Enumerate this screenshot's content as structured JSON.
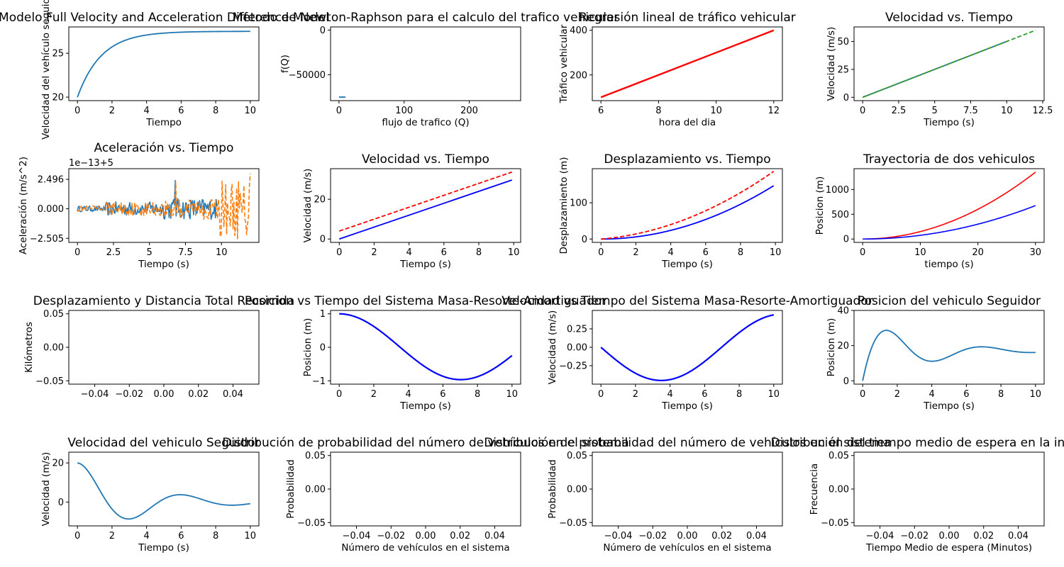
{
  "colors": {
    "c0": "#1f77b4",
    "c1": "#ff7f0e",
    "c2": "#2ca02c",
    "red": "#ff0000",
    "blue": "#0000ff"
  },
  "chart_data": [
    {
      "id": "p1",
      "type": "line",
      "title": "Modelo Full Velocity and Acceleration Difference Model",
      "xlabel": "Tiempo",
      "ylabel": "Velocidad del vehículo seguidor",
      "xlim": [
        -0.5,
        10.5
      ],
      "ylim": [
        19.6,
        28.0
      ],
      "xticks": [
        0,
        2,
        4,
        6,
        8,
        10
      ],
      "yticks": [
        20,
        25
      ],
      "series": [
        {
          "kind": "expr",
          "fn": "fvadm",
          "x": [
            0,
            10
          ],
          "color": "#1f77b4",
          "style": "solid",
          "width": 1.8
        }
      ]
    },
    {
      "id": "p2",
      "type": "line",
      "title": "Metodo de Newton-Raphson para el calculo del trafico vehicular",
      "xlabel": "flujo de trafico (Q)",
      "ylabel": "f(Q)",
      "xlim": [
        -13,
        279
      ],
      "ylim": [
        -79000,
        3500
      ],
      "xticks": [
        0,
        100,
        200
      ],
      "yticks": [
        0,
        -50000
      ],
      "series": [
        {
          "kind": "points",
          "x": [
            0,
            2,
            4,
            6,
            8,
            10
          ],
          "y": [
            -75000,
            -75000,
            -75000,
            -75000,
            -75000,
            -75000
          ],
          "color": "#1f77b4",
          "style": "solid",
          "width": 1.8
        }
      ]
    },
    {
      "id": "p3",
      "type": "line",
      "title": "Regresión lineal de tráfico vehicular",
      "xlabel": "hora del dia",
      "ylabel": "Tráfico vehicular",
      "xlim": [
        5.7,
        12.3
      ],
      "ylim": [
        85,
        415
      ],
      "xticks": [
        6,
        8,
        10,
        12
      ],
      "yticks": [
        200,
        400
      ],
      "series": [
        {
          "kind": "points",
          "x": [
            6,
            12
          ],
          "y": [
            100,
            400
          ],
          "color": "#ff0000",
          "style": "solid",
          "width": 2.4
        }
      ]
    },
    {
      "id": "p4",
      "type": "line",
      "title": "Velocidad vs. Tiempo",
      "xlabel": "Tiempo (s)",
      "ylabel": "Velocidad (m/s)",
      "xlim": [
        -0.6,
        12.6
      ],
      "ylim": [
        -3,
        63
      ],
      "xticks": [
        0,
        2.5,
        5,
        7.5,
        10,
        12.5
      ],
      "yticks": [
        0,
        25,
        50
      ],
      "series": [
        {
          "kind": "points",
          "x": [
            0,
            10
          ],
          "y": [
            0,
            50
          ],
          "color": "#1f77b4",
          "style": "solid",
          "width": 1.8
        },
        {
          "kind": "points",
          "x": [
            0,
            10
          ],
          "y": [
            0,
            50
          ],
          "color": "#ff7f0e",
          "style": "dashed",
          "width": 1.8
        },
        {
          "kind": "points",
          "x": [
            0,
            12
          ],
          "y": [
            0,
            60
          ],
          "color": "#2ca02c",
          "style": "dashed",
          "width": 1.8
        }
      ]
    },
    {
      "id": "p5",
      "type": "line",
      "title": "Aceleración vs. Tiempo",
      "xlabel": "Tiempo (s)",
      "ylabel": "Aceleración (m/s^2)",
      "offset_label": "1e−13+5",
      "xlim": [
        -0.6,
        12.6
      ],
      "ylim": [
        -2.85,
        3.4
      ],
      "xticks": [
        0,
        2.5,
        5,
        7.5,
        10
      ],
      "yticks": [
        2.496,
        0,
        -2.505
      ],
      "ytick_labels": [
        "2.496",
        "0.000",
        "−2.505"
      ],
      "series": [
        {
          "kind": "expr",
          "fn": "noise_a",
          "x": [
            0,
            9.7
          ],
          "color": "#1f77b4",
          "style": "solid",
          "width": 1.5
        },
        {
          "kind": "expr",
          "fn": "noise_b",
          "x": [
            0,
            12
          ],
          "color": "#ff7f0e",
          "style": "dashed",
          "width": 1.6
        }
      ]
    },
    {
      "id": "p6",
      "type": "line",
      "title": "Velocidad vs. Tiempo",
      "xlabel": "Tiempo (s)",
      "ylabel": "Velocidad (m/s)",
      "xlim": [
        -0.5,
        10.4
      ],
      "ylim": [
        -1.7,
        35.4
      ],
      "xticks": [
        0,
        2,
        4,
        6,
        8,
        10
      ],
      "yticks": [
        0,
        20
      ],
      "series": [
        {
          "kind": "points",
          "x": [
            0,
            9.9
          ],
          "y": [
            0,
            29.7
          ],
          "color": "#0000ff",
          "style": "solid",
          "width": 1.8
        },
        {
          "kind": "points",
          "x": [
            0,
            9.9
          ],
          "y": [
            4,
            33.7
          ],
          "color": "#ff0000",
          "style": "dashed",
          "width": 1.8
        }
      ]
    },
    {
      "id": "p7",
      "type": "line",
      "title": "Desplazamiento vs. Tiempo",
      "xlabel": "Tiempo (s)",
      "ylabel": "Desplazamiento (m)",
      "xlim": [
        -0.5,
        10.4
      ],
      "ylim": [
        -9.2,
        194
      ],
      "xticks": [
        0,
        2,
        4,
        6,
        8,
        10
      ],
      "yticks": [
        0,
        100
      ],
      "series": [
        {
          "kind": "expr",
          "fn": "disp_blue",
          "x": [
            0,
            9.9
          ],
          "color": "#0000ff",
          "style": "solid",
          "width": 1.8
        },
        {
          "kind": "expr",
          "fn": "disp_red",
          "x": [
            0,
            9.9
          ],
          "color": "#ff0000",
          "style": "dashed",
          "width": 1.8
        }
      ]
    },
    {
      "id": "p8",
      "type": "line",
      "title": "Trayectoria de dos vehiculos",
      "xlabel": "tiempo (s)",
      "ylabel": "Posicion (m)",
      "xlim": [
        -1.5,
        31.5
      ],
      "ylim": [
        -68,
        1420
      ],
      "xticks": [
        0,
        10,
        20,
        30
      ],
      "yticks": [
        0,
        500,
        1000
      ],
      "series": [
        {
          "kind": "expr",
          "fn": "traj_red",
          "x": [
            0,
            30
          ],
          "color": "#ff0000",
          "style": "solid",
          "width": 1.6
        },
        {
          "kind": "expr",
          "fn": "traj_blue",
          "x": [
            0,
            30
          ],
          "color": "#0000ff",
          "style": "solid",
          "width": 1.6
        }
      ]
    },
    {
      "id": "p9",
      "type": "line",
      "title": "Desplazamiento y Distancia Total Recorrida",
      "xlabel": "",
      "ylabel": "Kilómetros",
      "xlim": [
        -0.055,
        0.055
      ],
      "ylim": [
        -0.055,
        0.055
      ],
      "xticks": [
        -0.04,
        -0.02,
        0,
        0.02,
        0.04
      ],
      "yticks": [
        0.05,
        0,
        -0.05
      ],
      "xtick_labels": [
        "−0.04",
        "−0.02",
        "0.00",
        "0.02",
        "0.04"
      ],
      "ytick_labels": [
        "0.05",
        "0.00",
        "−0.05"
      ],
      "series": []
    },
    {
      "id": "p10",
      "type": "line",
      "title": "Posicion vs Tiempo del Sistema Masa-Resorte-Amortiguador",
      "xlabel": "Tiempo (s)",
      "ylabel": "Posicion (m)",
      "xlim": [
        -0.5,
        10.5
      ],
      "ylim": [
        -1.1,
        1.1
      ],
      "xticks": [
        0,
        2,
        4,
        6,
        8,
        10
      ],
      "yticks": [
        1,
        0,
        -1
      ],
      "ytick_labels": [
        "1",
        "0",
        "−1"
      ],
      "series": [
        {
          "kind": "expr",
          "fn": "msd_pos",
          "x": [
            0,
            10
          ],
          "color": "#0000ff",
          "style": "solid",
          "width": 2.2
        }
      ]
    },
    {
      "id": "p11",
      "type": "line",
      "title": "Velocidad vs Tiempo del Sistema Masa-Resorte-Amortiguador",
      "xlabel": "Tiempo (s)",
      "ylabel": "Velocidad (m/s)",
      "xlim": [
        -0.5,
        10.5
      ],
      "ylim": [
        -0.5,
        0.5
      ],
      "xticks": [
        0,
        2,
        4,
        6,
        8,
        10
      ],
      "yticks": [
        0.25,
        0,
        -0.25
      ],
      "ytick_labels": [
        "0.25",
        "0.00",
        "−0.25"
      ],
      "series": [
        {
          "kind": "expr",
          "fn": "msd_vel",
          "x": [
            0,
            10
          ],
          "color": "#0000ff",
          "style": "solid",
          "width": 2.2
        }
      ]
    },
    {
      "id": "p12",
      "type": "line",
      "title": "Posicion del vehiculo Seguidor",
      "xlabel": "Tiempo (s)",
      "ylabel": "Posicion (m)",
      "xlim": [
        -0.5,
        10.5
      ],
      "ylim": [
        -1.9,
        40
      ],
      "xticks": [
        0,
        2,
        4,
        6,
        8,
        10
      ],
      "yticks": [
        0,
        20,
        40
      ],
      "series": [
        {
          "kind": "expr",
          "fn": "follower_pos",
          "x": [
            0,
            10
          ],
          "color": "#1f77b4",
          "style": "solid",
          "width": 1.8
        }
      ]
    },
    {
      "id": "p13",
      "type": "line",
      "title": "Velocidad del vehiculo Seguidor",
      "xlabel": "Tiempo (s)",
      "ylabel": "Velocidad (m/s)",
      "xlim": [
        -0.5,
        10.5
      ],
      "ylim": [
        -12.2,
        25.5
      ],
      "xticks": [
        0,
        2,
        4,
        6,
        8,
        10
      ],
      "yticks": [
        20,
        0
      ],
      "series": [
        {
          "kind": "expr",
          "fn": "follower_vel",
          "x": [
            0,
            10
          ],
          "color": "#1f77b4",
          "style": "solid",
          "width": 1.8
        }
      ]
    },
    {
      "id": "p14",
      "type": "bar",
      "title": "Distribución de probabilidad del número de vehículos en el sistema",
      "xlabel": "Número de vehículos en el sistema",
      "ylabel": "Probabilidad",
      "xlim": [
        -0.055,
        0.055
      ],
      "ylim": [
        -0.055,
        0.055
      ],
      "xticks": [
        -0.04,
        -0.02,
        0,
        0.02,
        0.04
      ],
      "yticks": [
        0.05,
        0,
        -0.05
      ],
      "xtick_labels": [
        "−0.04",
        "−0.02",
        "0.00",
        "0.02",
        "0.04"
      ],
      "ytick_labels": [
        "0.05",
        "0.00",
        "−0.05"
      ],
      "series": []
    },
    {
      "id": "p15",
      "type": "bar",
      "title": "Distribución de probabilidad del número de vehículos en el sistema",
      "xlabel": "Número de vehículos en el sistema",
      "ylabel": "Probabilidad",
      "xlim": [
        -0.055,
        0.055
      ],
      "ylim": [
        -0.055,
        0.055
      ],
      "xticks": [
        -0.04,
        -0.02,
        0,
        0.02,
        0.04
      ],
      "yticks": [
        0.05,
        0,
        -0.05
      ],
      "xtick_labels": [
        "−0.04",
        "−0.02",
        "0.00",
        "0.02",
        "0.04"
      ],
      "ytick_labels": [
        "0.05",
        "0.00",
        "−0.05"
      ],
      "series": []
    },
    {
      "id": "p16",
      "type": "bar",
      "title": "Distribución del tiempo medio de espera en la intersección",
      "xlabel": "Tiempo Medio de espera (Minutos)",
      "ylabel": "Frecuencia",
      "xlim": [
        -0.055,
        0.055
      ],
      "ylim": [
        -0.055,
        0.055
      ],
      "xticks": [
        -0.04,
        -0.02,
        0,
        0.02,
        0.04
      ],
      "yticks": [
        0.05,
        0,
        -0.05
      ],
      "xtick_labels": [
        "−0.04",
        "−0.02",
        "0.00",
        "0.02",
        "0.04"
      ],
      "ytick_labels": [
        "0.05",
        "0.00",
        "−0.05"
      ],
      "series": []
    }
  ]
}
